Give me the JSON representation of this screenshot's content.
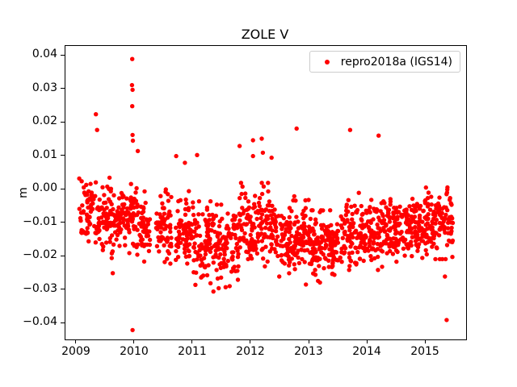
{
  "chart_data": {
    "type": "scatter",
    "title": "ZOLE V",
    "xlabel": "",
    "ylabel": "m",
    "grid": false,
    "xlim": [
      2008.806,
      2015.694
    ],
    "ylim": [
      -0.0448,
      0.0429
    ],
    "xticks": {
      "values": [
        2009,
        2010,
        2011,
        2012,
        2013,
        2014,
        2015
      ],
      "labels": [
        "2009",
        "2010",
        "2011",
        "2012",
        "2013",
        "2014",
        "2015"
      ]
    },
    "yticks": {
      "values": [
        0.04,
        0.03,
        0.02,
        0.01,
        0.0,
        -0.01,
        -0.02,
        -0.03,
        -0.04
      ],
      "labels": [
        "0.04",
        "0.03",
        "0.02",
        "0.01",
        "0.00",
        "−0.01",
        "−0.02",
        "−0.03",
        "−0.04"
      ]
    },
    "legend": {
      "position": "upper right",
      "frame": true,
      "frame_color": "#cccccc"
    },
    "series": [
      {
        "name": "repro2018a (IGS14)",
        "color": "#ff0000",
        "marker": "point",
        "marker_radius_px": 2.7,
        "seed": 7,
        "band_segments": [
          {
            "t0": 2009.04,
            "t1": 2009.3,
            "n": 60,
            "mean": -0.0065,
            "std": 0.0042
          },
          {
            "t0": 2009.3,
            "t1": 2009.6,
            "n": 75,
            "mean": -0.008,
            "std": 0.0048
          },
          {
            "t0": 2009.6,
            "t1": 2010.0,
            "n": 100,
            "mean": -0.0085,
            "std": 0.005
          },
          {
            "t0": 2010.0,
            "t1": 2010.26,
            "n": 65,
            "mean": -0.01,
            "std": 0.0048
          },
          {
            "t0": 2010.36,
            "t1": 2010.63,
            "n": 68,
            "mean": -0.0115,
            "std": 0.0048
          },
          {
            "t0": 2010.7,
            "t1": 2011.0,
            "n": 75,
            "mean": -0.0125,
            "std": 0.005
          },
          {
            "t0": 2011.0,
            "t1": 2011.4,
            "n": 100,
            "mean": -0.016,
            "std": 0.0052
          },
          {
            "t0": 2011.4,
            "t1": 2011.8,
            "n": 100,
            "mean": -0.017,
            "std": 0.0052
          },
          {
            "t0": 2011.8,
            "t1": 2012.4,
            "n": 150,
            "mean": -0.0105,
            "std": 0.0052
          },
          {
            "t0": 2012.4,
            "t1": 2013.0,
            "n": 150,
            "mean": -0.014,
            "std": 0.005
          },
          {
            "t0": 2013.0,
            "t1": 2013.6,
            "n": 150,
            "mean": -0.017,
            "std": 0.0045
          },
          {
            "t0": 2013.6,
            "t1": 2014.3,
            "n": 175,
            "mean": -0.0125,
            "std": 0.0048
          },
          {
            "t0": 2014.3,
            "t1": 2015.0,
            "n": 175,
            "mean": -0.0115,
            "std": 0.0042
          },
          {
            "t0": 2015.0,
            "t1": 2015.47,
            "n": 115,
            "mean": -0.01,
            "std": 0.0045
          }
        ],
        "outlier_points": [
          [
            2009.33,
            0.0225
          ],
          [
            2009.35,
            0.0178
          ],
          [
            2009.62,
            -0.025
          ],
          [
            2009.955,
            0.039
          ],
          [
            2009.95,
            0.0312
          ],
          [
            2009.96,
            0.0298
          ],
          [
            2009.955,
            0.0249
          ],
          [
            2009.96,
            0.0163
          ],
          [
            2009.965,
            0.0146
          ],
          [
            2009.96,
            -0.042
          ],
          [
            2010.05,
            0.0115
          ],
          [
            2010.71,
            0.01
          ],
          [
            2010.86,
            0.008
          ],
          [
            2011.07,
            0.0103
          ],
          [
            2011.8,
            0.013
          ],
          [
            2011.3,
            -0.028
          ],
          [
            2011.35,
            -0.0305
          ],
          [
            2011.44,
            -0.0295
          ],
          [
            2012.03,
            0.0147
          ],
          [
            2012.18,
            0.0152
          ],
          [
            2012.03,
            0.01
          ],
          [
            2012.2,
            0.011
          ],
          [
            2012.35,
            0.0095
          ],
          [
            2012.78,
            0.0182
          ],
          [
            2012.94,
            -0.0284
          ],
          [
            2013.43,
            -0.0255
          ],
          [
            2013.7,
            0.0178
          ],
          [
            2014.19,
            0.0161
          ],
          [
            2015.33,
            -0.026
          ],
          [
            2015.36,
            -0.039
          ]
        ]
      }
    ]
  }
}
